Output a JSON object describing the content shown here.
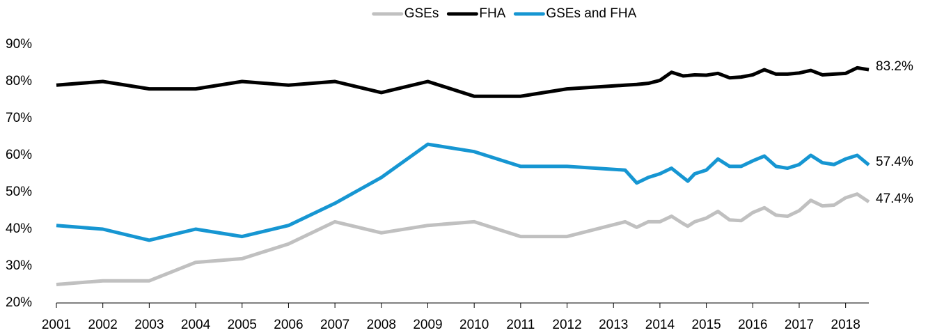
{
  "chart_data": {
    "type": "line",
    "x": [
      2001,
      2002,
      2003,
      2004,
      2005,
      2006,
      2007,
      2008,
      2009,
      2010,
      2011,
      2012,
      2013.25,
      2013.5,
      2013.75,
      2014,
      2014.25,
      2014.5,
      2014.6,
      2014.75,
      2015,
      2015.25,
      2015.5,
      2015.75,
      2016,
      2016.25,
      2016.5,
      2016.75,
      2017,
      2017.25,
      2017.5,
      2017.75,
      2018,
      2018.25,
      2018.5
    ],
    "series": [
      {
        "name": "GSEs",
        "color": "#c0c0c0",
        "end_label": "47.4%",
        "values": [
          25,
          26,
          26,
          31,
          32,
          36,
          42,
          39,
          41,
          42,
          38,
          38,
          42,
          40.5,
          42,
          42,
          43.5,
          41.5,
          40.8,
          42,
          43,
          44.8,
          42.5,
          42.3,
          44.5,
          45.8,
          43.8,
          43.5,
          45,
          47.8,
          46.3,
          46.5,
          48.5,
          49.5,
          47.4
        ]
      },
      {
        "name": "FHA",
        "color": "#000000",
        "end_label": "83.2%",
        "values": [
          79,
          80,
          78,
          78,
          80,
          79,
          80,
          77,
          80,
          76,
          76,
          78,
          79,
          79.2,
          79.5,
          80.3,
          82.5,
          81.5,
          81.6,
          81.8,
          81.7,
          82.2,
          81,
          81.2,
          81.8,
          83.2,
          82,
          82,
          82.3,
          83,
          81.8,
          82,
          82.2,
          83.7,
          83.2
        ]
      },
      {
        "name": "GSEs and FHA",
        "color": "#1696d2",
        "end_label": "57.4%",
        "values": [
          41,
          40,
          37,
          40,
          38,
          41,
          47,
          54,
          63,
          61,
          57,
          57,
          56,
          52.5,
          54,
          55,
          56.5,
          54,
          53,
          55,
          56,
          59,
          57,
          57,
          58.5,
          59.8,
          57,
          56.5,
          57.5,
          60,
          58,
          57.5,
          59,
          60,
          57.4
        ]
      }
    ],
    "xlim": [
      2001,
      2018.5
    ],
    "xticks": [
      2001,
      2002,
      2003,
      2004,
      2005,
      2006,
      2007,
      2008,
      2009,
      2010,
      2011,
      2012,
      2013,
      2014,
      2015,
      2016,
      2017,
      2018
    ],
    "ylim": [
      20,
      90
    ],
    "yticks": [
      {
        "value": 20,
        "label": "20%"
      },
      {
        "value": 30,
        "label": "30%"
      },
      {
        "value": 40,
        "label": "40%"
      },
      {
        "value": 50,
        "label": "50%"
      },
      {
        "value": 60,
        "label": "60%"
      },
      {
        "value": 70,
        "label": "70%"
      },
      {
        "value": 80,
        "label": "80%"
      },
      {
        "value": 90,
        "label": "90%"
      }
    ],
    "legend": "top"
  }
}
